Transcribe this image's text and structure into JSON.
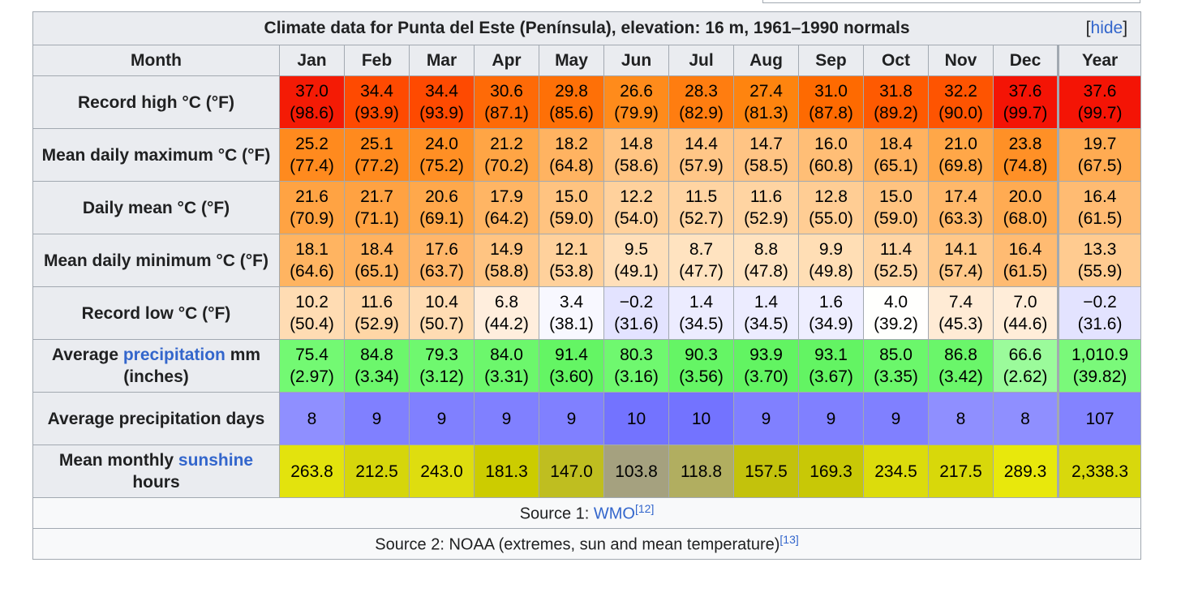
{
  "caption": "Climate data for Punta del Este (Península), elevation: 16 m, 1961–1990 normals",
  "hide_label": "hide",
  "columns": [
    "Month",
    "Jan",
    "Feb",
    "Mar",
    "Apr",
    "May",
    "Jun",
    "Jul",
    "Aug",
    "Sep",
    "Oct",
    "Nov",
    "Dec",
    "Year"
  ],
  "rows": [
    {
      "label": "Record high °C (°F)",
      "cells": [
        [
          "37.0",
          "(98.6)"
        ],
        [
          "34.4",
          "(93.9)"
        ],
        [
          "34.4",
          "(93.9)"
        ],
        [
          "30.6",
          "(87.1)"
        ],
        [
          "29.8",
          "(85.6)"
        ],
        [
          "26.6",
          "(79.9)"
        ],
        [
          "28.3",
          "(82.9)"
        ],
        [
          "27.4",
          "(81.3)"
        ],
        [
          "31.0",
          "(87.8)"
        ],
        [
          "31.8",
          "(89.2)"
        ],
        [
          "32.2",
          "(90.0)"
        ],
        [
          "37.6",
          "(99.7)"
        ],
        [
          "37.6",
          "(99.7)"
        ]
      ],
      "colors": [
        "#f41b05",
        "#fe4a01",
        "#fe4a01",
        "#fe6a07",
        "#fe7007",
        "#ff8b1b",
        "#ff7d10",
        "#fe840f",
        "#fe6a01",
        "#fe5a01",
        "#fe5401",
        "#f41405",
        "#f41405"
      ]
    },
    {
      "label": "Mean daily maximum °C (°F)",
      "cells": [
        [
          "25.2",
          "(77.4)"
        ],
        [
          "25.1",
          "(77.2)"
        ],
        [
          "24.0",
          "(75.2)"
        ],
        [
          "21.2",
          "(70.2)"
        ],
        [
          "18.2",
          "(64.8)"
        ],
        [
          "14.8",
          "(58.6)"
        ],
        [
          "14.4",
          "(57.9)"
        ],
        [
          "14.7",
          "(58.5)"
        ],
        [
          "16.0",
          "(60.8)"
        ],
        [
          "18.4",
          "(65.1)"
        ],
        [
          "21.0",
          "(69.8)"
        ],
        [
          "23.8",
          "(74.8)"
        ],
        [
          "19.7",
          "(67.5)"
        ]
      ],
      "colors": [
        "#ff8a1e",
        "#ff8a1e",
        "#ff8f24",
        "#ffa545",
        "#ffb361",
        "#ffc482",
        "#ffc687",
        "#ffc484",
        "#ffbe76",
        "#ffb25f",
        "#ffa748",
        "#ff9026",
        "#ffab52"
      ]
    },
    {
      "label": "Daily mean °C (°F)",
      "cells": [
        [
          "21.6",
          "(70.9)"
        ],
        [
          "21.7",
          "(71.1)"
        ],
        [
          "20.6",
          "(69.1)"
        ],
        [
          "17.9",
          "(64.2)"
        ],
        [
          "15.0",
          "(59.0)"
        ],
        [
          "12.2",
          "(54.0)"
        ],
        [
          "11.5",
          "(52.7)"
        ],
        [
          "11.6",
          "(52.9)"
        ],
        [
          "12.8",
          "(55.0)"
        ],
        [
          "15.0",
          "(59.0)"
        ],
        [
          "17.4",
          "(63.3)"
        ],
        [
          "20.0",
          "(68.0)"
        ],
        [
          "16.4",
          "(61.5)"
        ]
      ],
      "colors": [
        "#ffa343",
        "#ffa242",
        "#ffa84b",
        "#ffb564",
        "#ffc380",
        "#ffd19c",
        "#ffd4a2",
        "#ffd4a2",
        "#ffcd94",
        "#ffc380",
        "#ffb86a",
        "#ffab52",
        "#ffbb72"
      ]
    },
    {
      "label": "Mean daily minimum °C (°F)",
      "cells": [
        [
          "18.1",
          "(64.6)"
        ],
        [
          "18.4",
          "(65.1)"
        ],
        [
          "17.6",
          "(63.7)"
        ],
        [
          "14.9",
          "(58.8)"
        ],
        [
          "12.1",
          "(53.8)"
        ],
        [
          "9.5",
          "(49.1)"
        ],
        [
          "8.7",
          "(47.7)"
        ],
        [
          "8.8",
          "(47.8)"
        ],
        [
          "9.9",
          "(49.8)"
        ],
        [
          "11.4",
          "(52.5)"
        ],
        [
          "14.1",
          "(57.4)"
        ],
        [
          "16.4",
          "(61.5)"
        ],
        [
          "13.3",
          "(55.9)"
        ]
      ],
      "colors": [
        "#ffb461",
        "#ffb25f",
        "#ffb66a",
        "#ffc482",
        "#ffd19c",
        "#ffdfb9",
        "#ffe3c0",
        "#ffe3c0",
        "#ffdeb5",
        "#ffd5a4",
        "#ffc889",
        "#ffbb72",
        "#ffcb90"
      ]
    },
    {
      "label": "Record low °C (°F)",
      "cells": [
        [
          "10.2",
          "(50.4)"
        ],
        [
          "11.6",
          "(52.9)"
        ],
        [
          "10.4",
          "(50.7)"
        ],
        [
          "6.8",
          "(44.2)"
        ],
        [
          "3.4",
          "(38.1)"
        ],
        [
          "−0.2",
          "(31.6)"
        ],
        [
          "1.4",
          "(34.5)"
        ],
        [
          "1.4",
          "(34.5)"
        ],
        [
          "1.6",
          "(34.9)"
        ],
        [
          "4.0",
          "(39.2)"
        ],
        [
          "7.4",
          "(45.3)"
        ],
        [
          "7.0",
          "(44.6)"
        ],
        [
          "−0.2",
          "(31.6)"
        ]
      ],
      "colors": [
        "#ffdcb3",
        "#ffd6a6",
        "#ffdcb3",
        "#ffeedd",
        "#f8f8ff",
        "#e3e3ff",
        "#ececff",
        "#ececff",
        "#eeeeff",
        "#fffffd",
        "#ffebd5",
        "#ffedd9",
        "#e3e3ff"
      ]
    },
    {
      "label_pre": "Average ",
      "label_link": "precipitation",
      "label_post": " mm (inches)",
      "cells": [
        [
          "75.4",
          "(2.97)"
        ],
        [
          "84.8",
          "(3.34)"
        ],
        [
          "79.3",
          "(3.12)"
        ],
        [
          "84.0",
          "(3.31)"
        ],
        [
          "91.4",
          "(3.60)"
        ],
        [
          "80.3",
          "(3.16)"
        ],
        [
          "90.3",
          "(3.56)"
        ],
        [
          "93.9",
          "(3.70)"
        ],
        [
          "93.1",
          "(3.67)"
        ],
        [
          "85.0",
          "(3.35)"
        ],
        [
          "86.8",
          "(3.42)"
        ],
        [
          "66.6",
          "(2.62)"
        ],
        [
          "1,010.9",
          "(39.82)"
        ]
      ],
      "colors": [
        "#73f973",
        "#6cf76c",
        "#6ff86f",
        "#6cf76c",
        "#64f564",
        "#6ff86f",
        "#65f565",
        "#62f462",
        "#63f463",
        "#6bf76b",
        "#6af66a",
        "#9bfb9b",
        "#7af97a"
      ]
    },
    {
      "label": "Average precipitation days",
      "cells": [
        [
          "8"
        ],
        [
          "9"
        ],
        [
          "9"
        ],
        [
          "9"
        ],
        [
          "9"
        ],
        [
          "10"
        ],
        [
          "10"
        ],
        [
          "9"
        ],
        [
          "9"
        ],
        [
          "9"
        ],
        [
          "8"
        ],
        [
          "8"
        ],
        [
          "107"
        ]
      ],
      "colors": [
        "#8f8fff",
        "#8080ff",
        "#8080ff",
        "#8080ff",
        "#8080ff",
        "#7373ff",
        "#7373ff",
        "#8080ff",
        "#8080ff",
        "#8080ff",
        "#8f8fff",
        "#8f8fff",
        "#8383ff"
      ]
    },
    {
      "label_pre": "Mean monthly ",
      "label_link": "sunshine",
      "label_post": " hours",
      "cells": [
        [
          "263.8"
        ],
        [
          "212.5"
        ],
        [
          "243.0"
        ],
        [
          "181.3"
        ],
        [
          "147.0"
        ],
        [
          "103.8"
        ],
        [
          "118.8"
        ],
        [
          "157.5"
        ],
        [
          "169.3"
        ],
        [
          "234.5"
        ],
        [
          "217.5"
        ],
        [
          "289.3"
        ],
        [
          "2,338.3"
        ]
      ],
      "colors": [
        "#e3e30d",
        "#d6d60b",
        "#dedd0f",
        "#cccc00",
        "#bfbe20",
        "#a5a17f",
        "#b1ae60",
        "#c3c20c",
        "#c8c806",
        "#dcdc0c",
        "#d8d80a",
        "#e8e80c",
        "#d8d80c"
      ]
    }
  ],
  "source1": {
    "prefix": "Source 1: ",
    "link": "WMO",
    "ref": "[12]"
  },
  "source2": {
    "text": "Source 2: NOAA (extremes, sun and mean temperature)",
    "ref": "[13]"
  }
}
